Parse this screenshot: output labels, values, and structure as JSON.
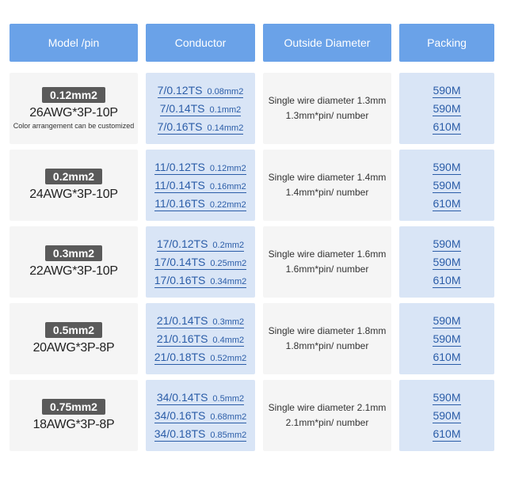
{
  "headers": {
    "model": "Model /pin",
    "conductor": "Conductor",
    "diameter": "Outside Diameter",
    "packing": "Packing"
  },
  "rows": [
    {
      "badge": "0.12mm2",
      "awg": "26AWG*3P-10P",
      "note": "Color arrangement can be customized",
      "conductors": [
        {
          "ts": "7/0.12TS",
          "mm": "0.08mm2"
        },
        {
          "ts": "7/0.14TS",
          "mm": "0.1mm2"
        },
        {
          "ts": "7/0.16TS",
          "mm": "0.14mm2"
        }
      ],
      "diam1": "Single wire diameter 1.3mm",
      "diam2": "1.3mm*pin/ number",
      "packing": [
        "590M",
        "590M",
        "610M"
      ]
    },
    {
      "badge": "0.2mm2",
      "awg": "24AWG*3P-10P",
      "note": "",
      "conductors": [
        {
          "ts": "11/0.12TS",
          "mm": "0.12mm2"
        },
        {
          "ts": "11/0.14TS",
          "mm": "0.16mm2"
        },
        {
          "ts": "11/0.16TS",
          "mm": "0.22mm2"
        }
      ],
      "diam1": "Single wire diameter 1.4mm",
      "diam2": "1.4mm*pin/ number",
      "packing": [
        "590M",
        "590M",
        "610M"
      ]
    },
    {
      "badge": "0.3mm2",
      "awg": "22AWG*3P-10P",
      "note": "",
      "conductors": [
        {
          "ts": "17/0.12TS",
          "mm": "0.2mm2"
        },
        {
          "ts": "17/0.14TS",
          "mm": "0.25mm2"
        },
        {
          "ts": "17/0.16TS",
          "mm": "0.34mm2"
        }
      ],
      "diam1": "Single wire diameter 1.6mm",
      "diam2": "1.6mm*pin/ number",
      "packing": [
        "590M",
        "590M",
        "610M"
      ]
    },
    {
      "badge": "0.5mm2",
      "awg": "20AWG*3P-8P",
      "note": "",
      "conductors": [
        {
          "ts": "21/0.14TS",
          "mm": "0.3mm2"
        },
        {
          "ts": "21/0.16TS",
          "mm": "0.4mm2"
        },
        {
          "ts": "21/0.18TS",
          "mm": "0.52mm2"
        }
      ],
      "diam1": "Single wire diameter 1.8mm",
      "diam2": "1.8mm*pin/ number",
      "packing": [
        "590M",
        "590M",
        "610M"
      ]
    },
    {
      "badge": "0.75mm2",
      "awg": "18AWG*3P-8P",
      "note": "",
      "conductors": [
        {
          "ts": "34/0.14TS",
          "mm": "0.5mm2"
        },
        {
          "ts": "34/0.16TS",
          "mm": "0.68mm2"
        },
        {
          "ts": "34/0.18TS",
          "mm": "0.85mm2"
        }
      ],
      "diam1": "Single wire diameter 2.1mm",
      "diam2": "2.1mm*pin/ number",
      "packing": [
        "590M",
        "590M",
        "610M"
      ]
    }
  ]
}
